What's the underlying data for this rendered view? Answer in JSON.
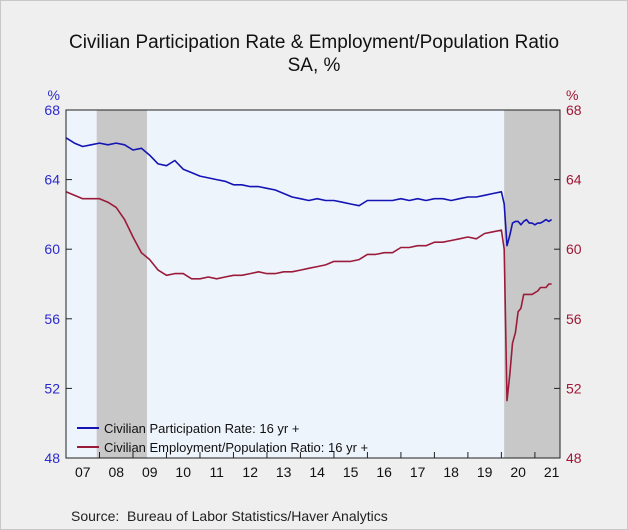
{
  "chart_data": {
    "type": "line",
    "title": "Civilian Participation Rate & Employment/Population Ratio",
    "subtitle": "SA, %",
    "left_axis_unit": "%",
    "right_axis_unit": "%",
    "ylim": [
      48,
      68
    ],
    "yticks": [
      48,
      52,
      56,
      60,
      64,
      68
    ],
    "x_tick_labels": [
      "07",
      "08",
      "09",
      "10",
      "11",
      "12",
      "13",
      "14",
      "15",
      "16",
      "17",
      "18",
      "19",
      "20",
      "21"
    ],
    "xlim": [
      2007.0,
      2021.75
    ],
    "recessions": [
      [
        2007.917,
        2009.417
      ],
      [
        2020.083,
        2021.75
      ]
    ],
    "colors": {
      "left_axis": "#2a2acc",
      "right_axis": "#a01636",
      "recession": "#c8c8c8",
      "plot_bg": "#eef4fc"
    },
    "grid": false,
    "legend_position": "bottom-left",
    "series": [
      {
        "name": "Civilian Participation Rate: 16 yr +",
        "color": "#1414b4",
        "x": [
          2007.0,
          2007.25,
          2007.5,
          2007.75,
          2008.0,
          2008.25,
          2008.5,
          2008.75,
          2009.0,
          2009.25,
          2009.5,
          2009.75,
          2010.0,
          2010.25,
          2010.5,
          2010.75,
          2011.0,
          2011.25,
          2011.5,
          2011.75,
          2012.0,
          2012.25,
          2012.5,
          2012.75,
          2013.0,
          2013.25,
          2013.5,
          2013.75,
          2014.0,
          2014.25,
          2014.5,
          2014.75,
          2015.0,
          2015.25,
          2015.5,
          2015.75,
          2016.0,
          2016.25,
          2016.5,
          2016.75,
          2017.0,
          2017.25,
          2017.5,
          2017.75,
          2018.0,
          2018.25,
          2018.5,
          2018.75,
          2019.0,
          2019.25,
          2019.5,
          2019.75,
          2020.0,
          2020.083,
          2020.167,
          2020.25,
          2020.333,
          2020.417,
          2020.5,
          2020.583,
          2020.667,
          2020.75,
          2020.833,
          2020.917,
          2021.0,
          2021.083,
          2021.167,
          2021.25,
          2021.333,
          2021.417,
          2021.5
        ],
        "values": [
          66.4,
          66.1,
          65.9,
          66.0,
          66.1,
          66.0,
          66.1,
          66.0,
          65.7,
          65.8,
          65.4,
          64.9,
          64.8,
          65.1,
          64.6,
          64.4,
          64.2,
          64.1,
          64.0,
          63.9,
          63.7,
          63.7,
          63.6,
          63.6,
          63.5,
          63.4,
          63.2,
          63.0,
          62.9,
          62.8,
          62.9,
          62.8,
          62.8,
          62.7,
          62.6,
          62.5,
          62.8,
          62.8,
          62.8,
          62.8,
          62.9,
          62.8,
          62.9,
          62.8,
          62.9,
          62.9,
          62.8,
          62.9,
          63.0,
          63.0,
          63.1,
          63.2,
          63.3,
          62.6,
          60.2,
          60.8,
          61.5,
          61.6,
          61.6,
          61.4,
          61.6,
          61.7,
          61.5,
          61.5,
          61.4,
          61.5,
          61.5,
          61.6,
          61.7,
          61.6,
          61.7
        ]
      },
      {
        "name": "Civilian Employment/Population Ratio: 16 yr +",
        "color": "#9b1b3a",
        "x": [
          2007.0,
          2007.25,
          2007.5,
          2007.75,
          2008.0,
          2008.25,
          2008.5,
          2008.75,
          2009.0,
          2009.25,
          2009.5,
          2009.75,
          2010.0,
          2010.25,
          2010.5,
          2010.75,
          2011.0,
          2011.25,
          2011.5,
          2011.75,
          2012.0,
          2012.25,
          2012.5,
          2012.75,
          2013.0,
          2013.25,
          2013.5,
          2013.75,
          2014.0,
          2014.25,
          2014.5,
          2014.75,
          2015.0,
          2015.25,
          2015.5,
          2015.75,
          2016.0,
          2016.25,
          2016.5,
          2016.75,
          2017.0,
          2017.25,
          2017.5,
          2017.75,
          2018.0,
          2018.25,
          2018.5,
          2018.75,
          2019.0,
          2019.25,
          2019.5,
          2019.75,
          2020.0,
          2020.083,
          2020.167,
          2020.25,
          2020.333,
          2020.417,
          2020.5,
          2020.583,
          2020.667,
          2020.75,
          2020.833,
          2020.917,
          2021.0,
          2021.083,
          2021.167,
          2021.25,
          2021.333,
          2021.417,
          2021.5
        ],
        "values": [
          63.3,
          63.1,
          62.9,
          62.9,
          62.9,
          62.7,
          62.4,
          61.7,
          60.7,
          59.8,
          59.4,
          58.8,
          58.5,
          58.6,
          58.6,
          58.3,
          58.3,
          58.4,
          58.3,
          58.4,
          58.5,
          58.5,
          58.6,
          58.7,
          58.6,
          58.6,
          58.7,
          58.7,
          58.8,
          58.9,
          59.0,
          59.1,
          59.3,
          59.3,
          59.3,
          59.4,
          59.7,
          59.7,
          59.8,
          59.8,
          60.1,
          60.1,
          60.2,
          60.2,
          60.4,
          60.4,
          60.5,
          60.6,
          60.7,
          60.6,
          60.9,
          61.0,
          61.1,
          60.0,
          51.3,
          52.8,
          54.6,
          55.2,
          56.4,
          56.6,
          57.4,
          57.4,
          57.4,
          57.4,
          57.5,
          57.6,
          57.8,
          57.8,
          57.8,
          58.0,
          58.0
        ]
      }
    ]
  }
}
